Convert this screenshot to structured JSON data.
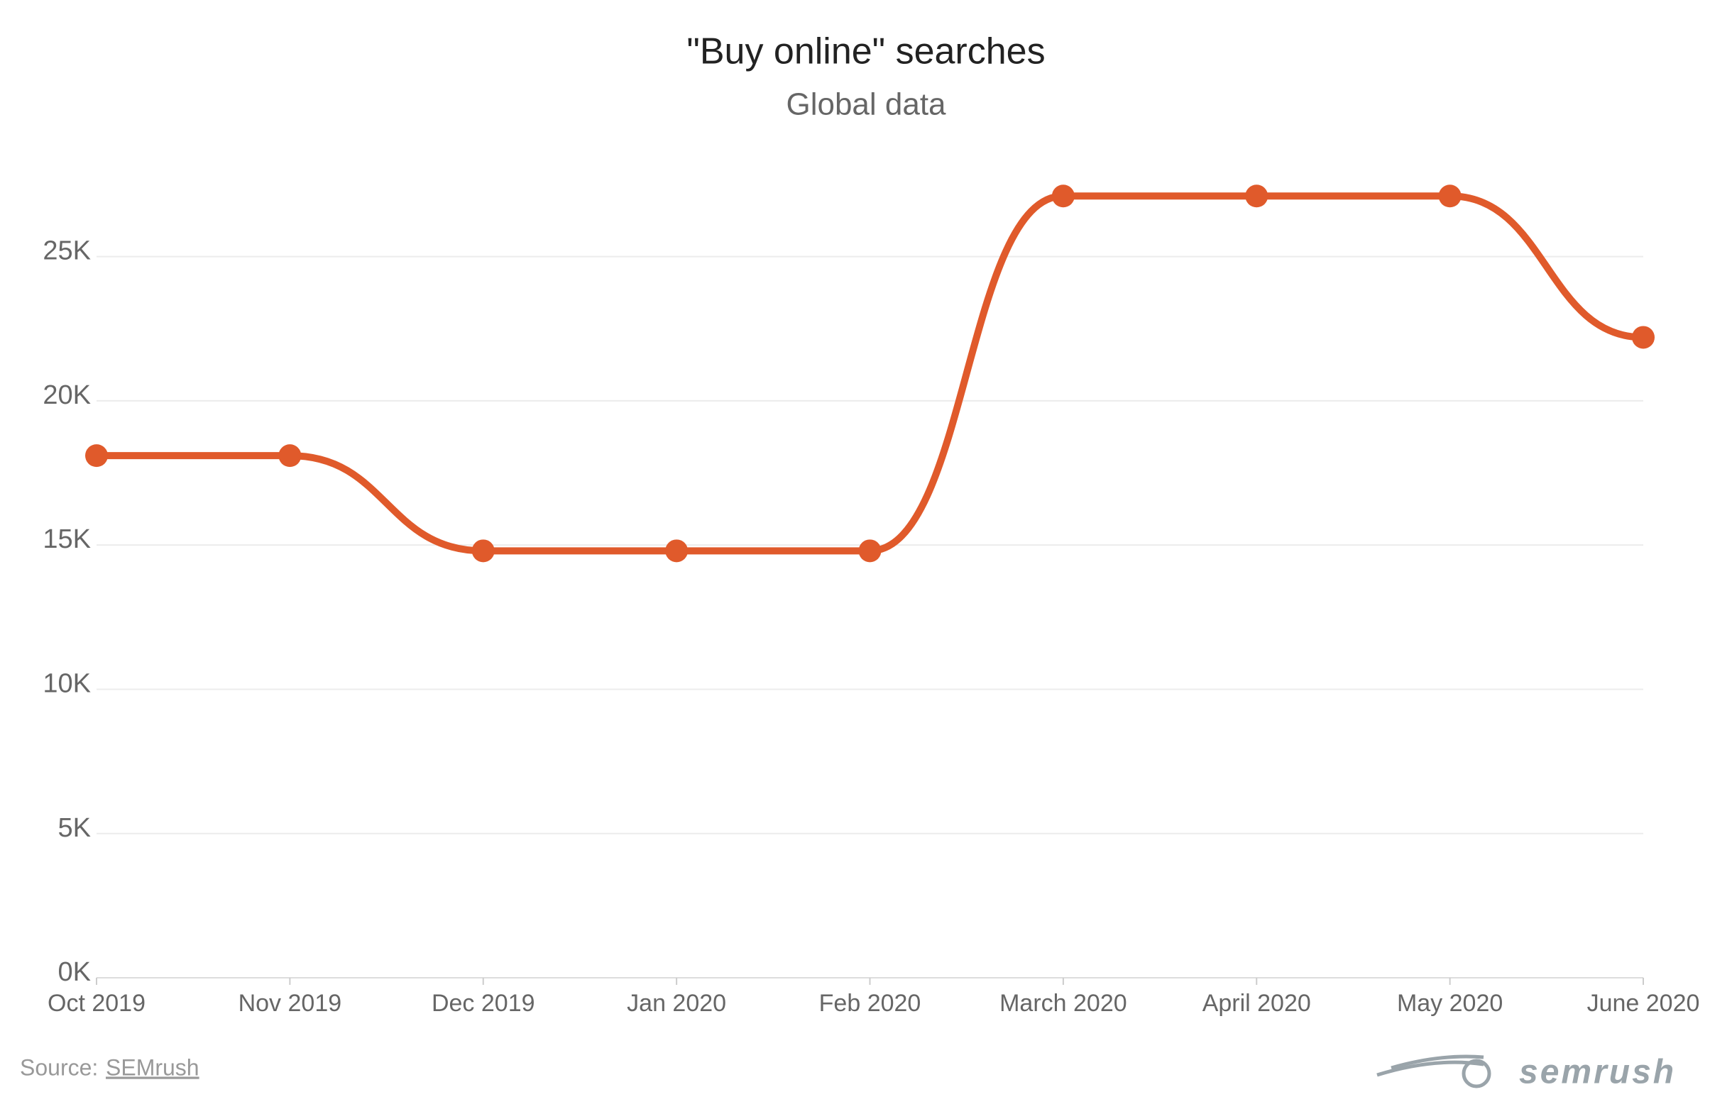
{
  "chart_data": {
    "type": "line",
    "title": "\"Buy online\" searches",
    "subtitle": "Global data",
    "categories": [
      "Oct 2019",
      "Nov 2019",
      "Dec 2019",
      "Jan 2020",
      "Feb 2020",
      "March 2020",
      "April 2020",
      "May 2020",
      "June 2020"
    ],
    "series": [
      {
        "name": "\"Buy online\" searches",
        "color": "#e05a2b",
        "values": [
          18100,
          18100,
          14800,
          14800,
          14800,
          27100,
          27100,
          27100,
          22200
        ]
      }
    ],
    "ylim": [
      0,
      27500
    ],
    "yticks": [
      {
        "value": 0,
        "label": "0K"
      },
      {
        "value": 5000,
        "label": "5K"
      },
      {
        "value": 10000,
        "label": "10K"
      },
      {
        "value": 15000,
        "label": "15K"
      },
      {
        "value": 20000,
        "label": "20K"
      },
      {
        "value": 25000,
        "label": "25K"
      }
    ],
    "grid": true,
    "source_label": "Source:",
    "source_link": "SEMrush",
    "logo": "semrush"
  }
}
